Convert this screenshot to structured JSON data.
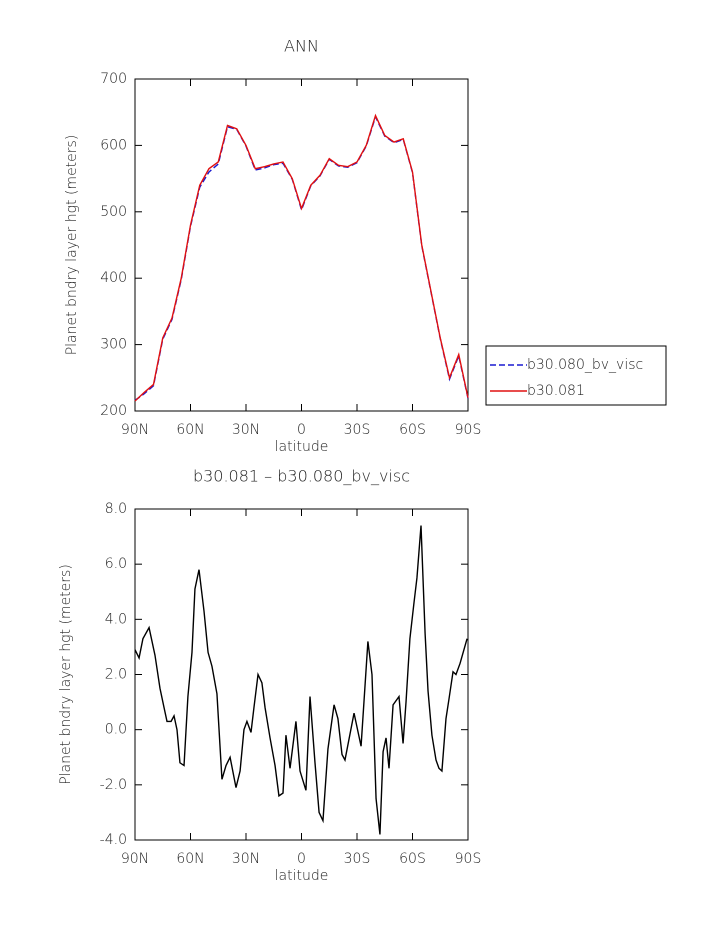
{
  "chart_data": [
    {
      "type": "line",
      "title": "ANN",
      "xlabel": "latitude",
      "ylabel": "Planet bndry layer hgt (meters)",
      "x": [
        90,
        85,
        80,
        75,
        70,
        65,
        60,
        55,
        50,
        45,
        40,
        35,
        30,
        25,
        20,
        15,
        10,
        5,
        0,
        -5,
        -10,
        -15,
        -20,
        -25,
        -30,
        -35,
        -40,
        -45,
        -50,
        -55,
        -60,
        -65,
        -70,
        -75,
        -80,
        -85,
        -90
      ],
      "series": [
        {
          "name": "b30.080_bv_visc",
          "color": "#1a1ad0",
          "style": "dashed",
          "values": [
            216,
            226,
            238,
            308,
            338,
            398,
            478,
            537,
            560,
            572,
            628,
            624,
            599,
            563,
            566,
            571,
            573,
            549,
            503,
            539,
            554,
            579,
            569,
            567,
            574,
            599,
            643,
            614,
            604,
            609,
            559,
            449,
            379,
            309,
            248,
            283,
            219
          ]
        },
        {
          "name": "b30.081",
          "color": "#e01010",
          "style": "solid",
          "values": [
            215,
            228,
            240,
            310,
            340,
            400,
            480,
            540,
            565,
            575,
            630,
            625,
            600,
            565,
            568,
            572,
            575,
            550,
            505,
            540,
            555,
            580,
            570,
            568,
            575,
            600,
            645,
            615,
            605,
            610,
            560,
            450,
            380,
            310,
            250,
            285,
            220
          ]
        }
      ],
      "xlim": [
        90,
        -90
      ],
      "xticks": [
        {
          "value": 90,
          "label": "90N"
        },
        {
          "value": 60,
          "label": "60N"
        },
        {
          "value": 30,
          "label": "30N"
        },
        0,
        {
          "value": -30,
          "label": "30S"
        },
        {
          "value": -60,
          "label": "60S"
        },
        {
          "value": -90,
          "label": "90S"
        }
      ],
      "ylim": [
        200,
        700
      ],
      "yticks": [
        200,
        300,
        400,
        500,
        600,
        700
      ],
      "legend": "right"
    },
    {
      "type": "line",
      "title": "b30.081 – b30.080_bv_visc",
      "xlabel": "latitude",
      "ylabel": "Planet bndry layer hgt (meters)",
      "x": [
        90,
        87.8,
        85.7,
        82.4,
        79.2,
        76.5,
        74.3,
        72.7,
        70.5,
        68.9,
        67.3,
        65.7,
        63.5,
        61.4,
        59.2,
        57.6,
        55.4,
        52.7,
        50.5,
        48.4,
        45.7,
        43.0,
        40.8,
        38.6,
        35.4,
        33.2,
        31.1,
        29.5,
        27.3,
        25.7,
        23.5,
        21.4,
        19.7,
        17.0,
        14.3,
        12.2,
        10.0,
        8.4,
        6.2,
        3.0,
        0.8,
        -2.4,
        -4.6,
        -7.3,
        -9.5,
        -11.6,
        -14.3,
        -17.6,
        -19.7,
        -21.9,
        -23.5,
        -28.4,
        -32.2,
        -35.9,
        -38.1,
        -40.3,
        -42.4,
        -44.1,
        -45.7,
        -47.3,
        -49.5,
        -52.7,
        -54.9,
        -56.5,
        -58.6,
        -60.8,
        -62.4,
        -64.6,
        -66.8,
        -68.4,
        -70.5,
        -72.7,
        -74.3,
        -75.9,
        -78.1,
        -79.7,
        -81.9,
        -83.5,
        -85.7,
        -89.5
      ],
      "values": [
        2.9,
        2.6,
        3.3,
        3.7,
        2.7,
        1.5,
        0.8,
        0.3,
        0.3,
        0.5,
        0.0,
        -1.2,
        -1.3,
        1.2,
        2.8,
        5.1,
        5.8,
        4.3,
        2.8,
        2.3,
        1.3,
        -1.8,
        -1.3,
        -1.0,
        -2.1,
        -1.5,
        0.0,
        0.3,
        -0.1,
        0.8,
        2.0,
        1.7,
        0.8,
        -0.3,
        -1.3,
        -2.4,
        -2.3,
        -0.2,
        -1.4,
        0.3,
        -1.5,
        -2.2,
        1.2,
        -1.2,
        -3.0,
        -3.3,
        -0.7,
        0.9,
        0.4,
        -0.9,
        -1.1,
        0.6,
        -0.6,
        3.2,
        2.0,
        -2.5,
        -3.8,
        -0.8,
        -0.3,
        -1.4,
        0.9,
        1.2,
        -0.5,
        1.0,
        3.3,
        4.6,
        5.5,
        7.4,
        3.5,
        1.4,
        -0.2,
        -1.1,
        -1.4,
        -1.5,
        0.4,
        1.1,
        2.1,
        2.0,
        2.4,
        3.3
      ],
      "color": "#000000",
      "xlim": [
        90,
        -90
      ],
      "xticks": [
        {
          "value": 90,
          "label": "90N"
        },
        {
          "value": 60,
          "label": "60N"
        },
        {
          "value": 30,
          "label": "30N"
        },
        0,
        {
          "value": -30,
          "label": "30S"
        },
        {
          "value": -60,
          "label": "60S"
        },
        {
          "value": -90,
          "label": "90S"
        }
      ],
      "ylim": [
        -4,
        8
      ],
      "yticks": [
        {
          "value": -4,
          "label": "-4.0"
        },
        {
          "value": -2,
          "label": "-2.0"
        },
        {
          "value": 0,
          "label": "0.0"
        },
        {
          "value": 2,
          "label": "2.0"
        },
        {
          "value": 4,
          "label": "4.0"
        },
        {
          "value": 6,
          "label": "6.0"
        },
        {
          "value": 8,
          "label": "8.0"
        }
      ]
    }
  ]
}
